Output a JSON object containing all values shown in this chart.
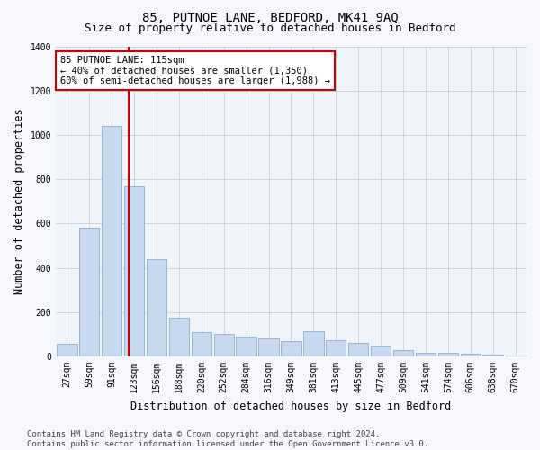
{
  "title": "85, PUTNOE LANE, BEDFORD, MK41 9AQ",
  "subtitle": "Size of property relative to detached houses in Bedford",
  "xlabel": "Distribution of detached houses by size in Bedford",
  "ylabel": "Number of detached properties",
  "categories": [
    "27sqm",
    "59sqm",
    "91sqm",
    "123sqm",
    "156sqm",
    "188sqm",
    "220sqm",
    "252sqm",
    "284sqm",
    "316sqm",
    "349sqm",
    "381sqm",
    "413sqm",
    "445sqm",
    "477sqm",
    "509sqm",
    "541sqm",
    "574sqm",
    "606sqm",
    "638sqm",
    "670sqm"
  ],
  "values": [
    57,
    580,
    1040,
    770,
    440,
    175,
    110,
    100,
    90,
    80,
    70,
    115,
    75,
    60,
    50,
    28,
    18,
    18,
    12,
    8,
    4
  ],
  "bar_color": "#c8d8ef",
  "bar_edge_color": "#8aaed0",
  "vline_color": "#cc0000",
  "annotation_text": "85 PUTNOE LANE: 115sqm\n← 40% of detached houses are smaller (1,350)\n60% of semi-detached houses are larger (1,988) →",
  "annotation_box_facecolor": "#ffffff",
  "annotation_box_edgecolor": "#cc0000",
  "ylim": [
    0,
    1400
  ],
  "yticks": [
    0,
    200,
    400,
    600,
    800,
    1000,
    1200,
    1400
  ],
  "footer": "Contains HM Land Registry data © Crown copyright and database right 2024.\nContains public sector information licensed under the Open Government Licence v3.0.",
  "fig_facecolor": "#f5f7fc",
  "plot_facecolor": "#f0f4fb",
  "grid_color": "#c8cdd8",
  "title_fontsize": 10,
  "subtitle_fontsize": 9,
  "axis_label_fontsize": 8.5,
  "tick_fontsize": 7,
  "footer_fontsize": 6.5,
  "ann_fontsize": 7.5
}
